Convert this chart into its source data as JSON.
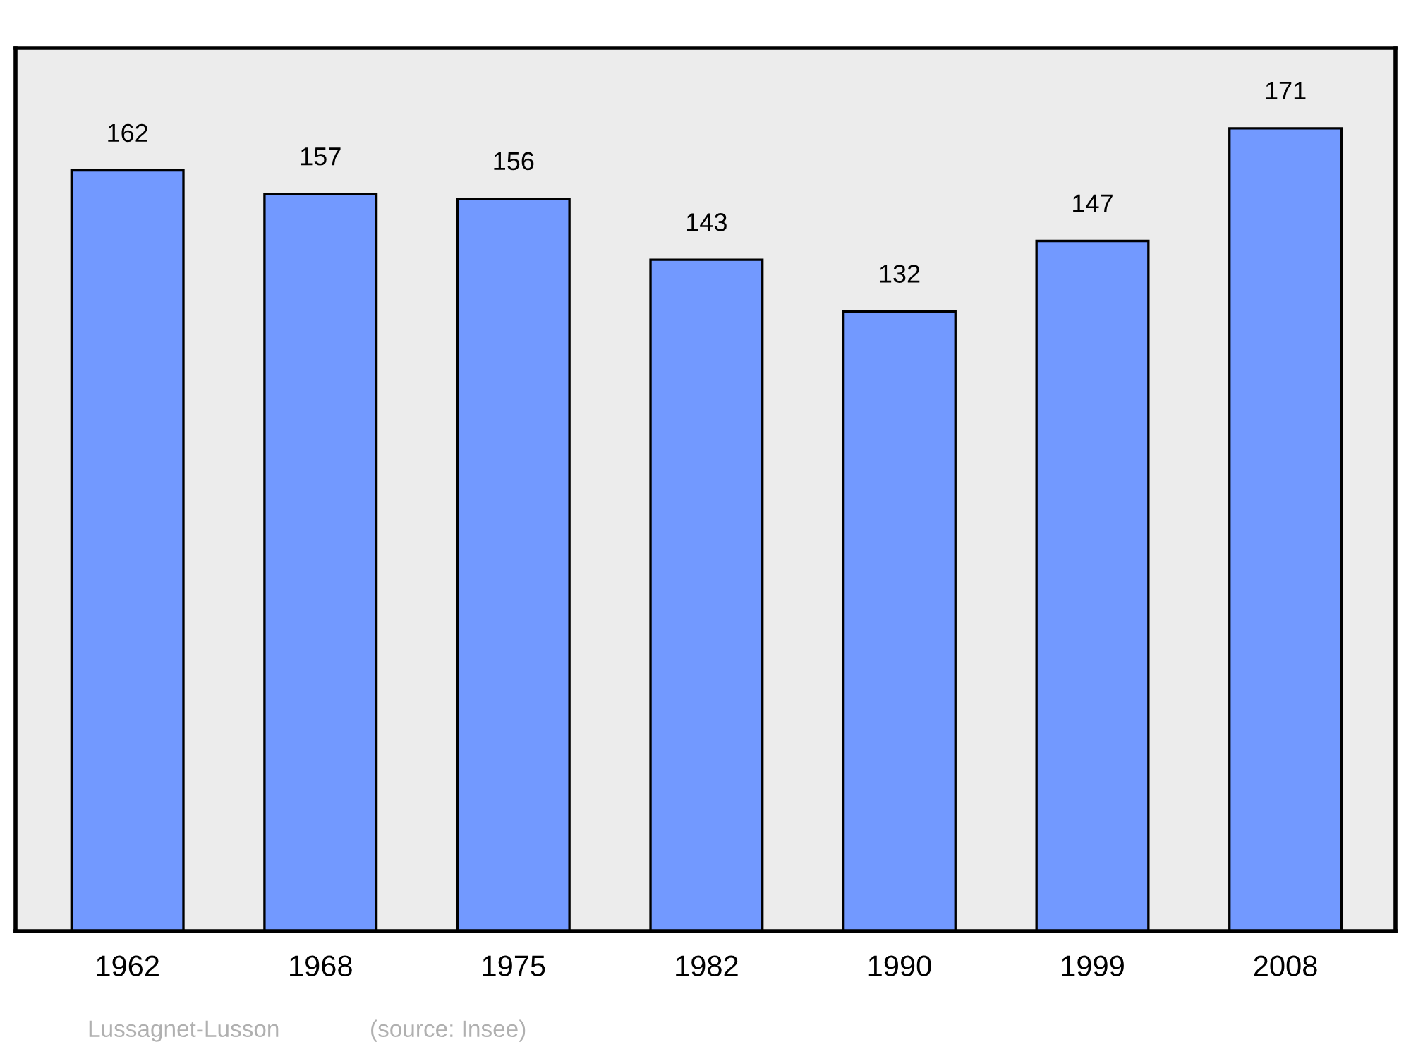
{
  "chart_data": {
    "type": "bar",
    "categories": [
      "1962",
      "1968",
      "1975",
      "1982",
      "1990",
      "1999",
      "2008"
    ],
    "values": [
      162,
      157,
      156,
      143,
      132,
      147,
      171
    ],
    "color": "#7299ff",
    "data_labels": true,
    "grid": false,
    "legend": false,
    "tick_labels": "x",
    "annotations": [
      "Lussagnet-Lusson",
      "(source: Insee)"
    ]
  }
}
